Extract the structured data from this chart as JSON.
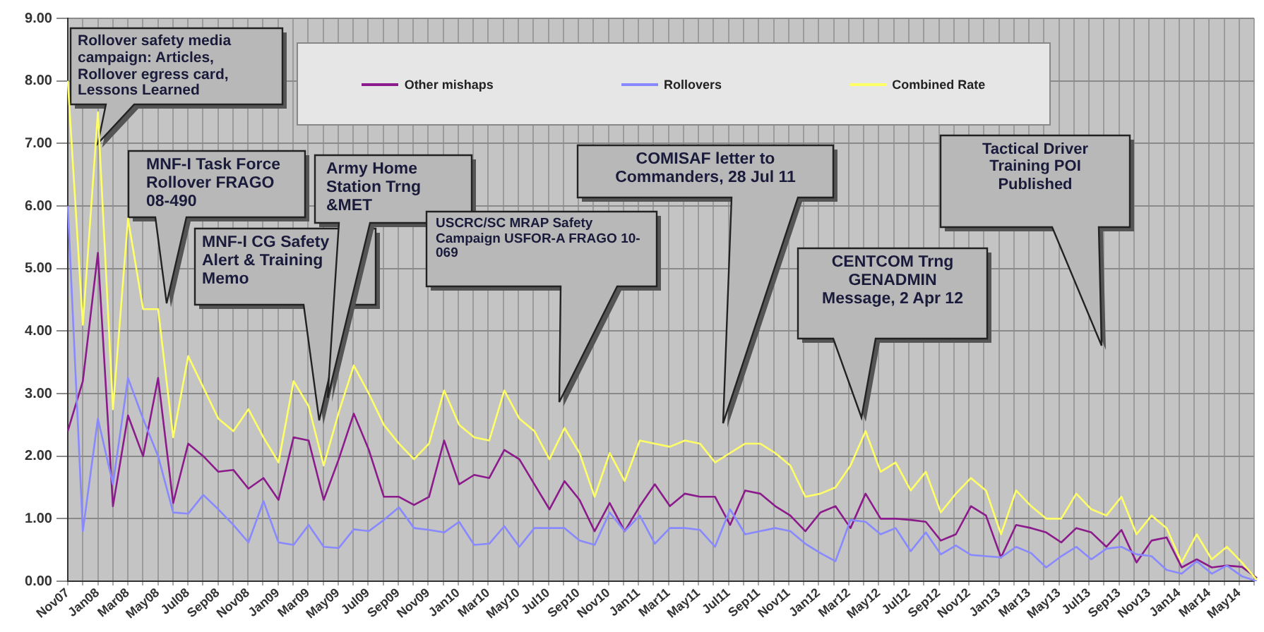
{
  "chart_data": {
    "type": "line",
    "categories": [
      "Nov07",
      null,
      "Jan08",
      null,
      "Mar08",
      null,
      "May08",
      null,
      "Jul08",
      null,
      "Sep08",
      null,
      "Nov08",
      null,
      "Jan09",
      null,
      "Mar09",
      null,
      "May09",
      null,
      "Jul09",
      null,
      "Sep09",
      null,
      "Nov09",
      null,
      "Jan10",
      null,
      "Mar10",
      null,
      "May10",
      null,
      "Jul10",
      null,
      "Sep10",
      null,
      "Nov10",
      null,
      "Jan11",
      null,
      "Mar11",
      null,
      "May11",
      null,
      "Jul11",
      null,
      "Sep11",
      null,
      "Nov11",
      null,
      "Jan12",
      null,
      "Mar12",
      null,
      "May12",
      null,
      "Jul12",
      null,
      "Sep12",
      null,
      "Nov12",
      null,
      "Jan13",
      null,
      "Mar13",
      null,
      "May13",
      null,
      "Jul13",
      null,
      "Sep13",
      null,
      "Nov13",
      null,
      "Jan14",
      null,
      "Mar14",
      null,
      "May14",
      null
    ],
    "series": [
      {
        "name": "Other mishaps",
        "color": "#8b1a8b",
        "values": [
          2.4,
          3.2,
          5.25,
          1.2,
          2.65,
          2.0,
          3.25,
          1.25,
          2.2,
          2.0,
          1.75,
          1.78,
          1.48,
          1.65,
          1.3,
          2.3,
          2.25,
          1.3,
          1.95,
          2.68,
          2.1,
          1.35,
          1.35,
          1.22,
          1.35,
          2.25,
          1.55,
          1.7,
          1.65,
          2.1,
          1.95,
          1.55,
          1.15,
          1.6,
          1.3,
          0.8,
          1.25,
          0.8,
          1.2,
          1.55,
          1.2,
          1.4,
          1.35,
          1.35,
          0.9,
          1.45,
          1.4,
          1.2,
          1.05,
          0.8,
          1.1,
          1.2,
          0.85,
          1.4,
          1.0,
          1.0,
          0.98,
          0.95,
          0.65,
          0.75,
          1.2,
          1.05,
          0.38,
          0.9,
          0.85,
          0.78,
          0.62,
          0.85,
          0.78,
          0.55,
          0.82,
          0.3,
          0.65,
          0.7,
          0.22,
          0.35,
          0.22,
          0.25,
          0.23,
          0.05
        ]
      },
      {
        "name": "Rollovers",
        "color": "#8888ff",
        "values": [
          6.0,
          0.8,
          2.6,
          1.55,
          3.25,
          2.6,
          2.0,
          1.1,
          1.08,
          1.38,
          1.15,
          0.9,
          0.62,
          1.28,
          0.62,
          0.58,
          0.9,
          0.55,
          0.53,
          0.83,
          0.8,
          0.98,
          1.18,
          0.85,
          0.82,
          0.78,
          0.95,
          0.58,
          0.6,
          0.88,
          0.55,
          0.85,
          0.85,
          0.85,
          0.65,
          0.58,
          1.1,
          0.8,
          1.05,
          0.6,
          0.85,
          0.85,
          0.82,
          0.55,
          1.15,
          0.75,
          0.8,
          0.85,
          0.8,
          0.6,
          0.45,
          0.32,
          0.98,
          0.95,
          0.75,
          0.85,
          0.48,
          0.78,
          0.43,
          0.57,
          0.42,
          0.4,
          0.38,
          0.55,
          0.45,
          0.22,
          0.4,
          0.55,
          0.35,
          0.52,
          0.55,
          0.43,
          0.4,
          0.18,
          0.12,
          0.32,
          0.12,
          0.25,
          0.08,
          0.0
        ]
      },
      {
        "name": "Combined Rate",
        "color": "#ffff66",
        "values": [
          8.0,
          4.1,
          7.5,
          2.75,
          5.8,
          4.35,
          4.35,
          2.3,
          3.6,
          3.1,
          2.6,
          2.4,
          2.75,
          2.3,
          1.9,
          3.2,
          2.8,
          1.85,
          2.7,
          3.45,
          3.0,
          2.5,
          2.2,
          1.95,
          2.2,
          3.05,
          2.5,
          2.3,
          2.25,
          3.05,
          2.6,
          2.4,
          1.95,
          2.45,
          2.05,
          1.35,
          2.05,
          1.6,
          2.25,
          2.2,
          2.15,
          2.25,
          2.2,
          1.9,
          2.05,
          2.2,
          2.2,
          2.05,
          1.85,
          1.35,
          1.4,
          1.5,
          1.85,
          2.4,
          1.75,
          1.9,
          1.45,
          1.75,
          1.1,
          1.4,
          1.65,
          1.45,
          0.75,
          1.45,
          1.2,
          1.0,
          1.0,
          1.4,
          1.15,
          1.05,
          1.35,
          0.75,
          1.05,
          0.85,
          0.3,
          0.75,
          0.35,
          0.55,
          0.3,
          0.02
        ]
      }
    ],
    "ylim": [
      0,
      9
    ],
    "yticks": [
      {
        "value": 0,
        "label": "0.00"
      },
      {
        "value": 1,
        "label": "1.00"
      },
      {
        "value": 2,
        "label": "2.00"
      },
      {
        "value": 3,
        "label": "3.00"
      },
      {
        "value": 4,
        "label": "4.00"
      },
      {
        "value": 5,
        "label": "5.00"
      },
      {
        "value": 6,
        "label": "6.00"
      },
      {
        "value": 7,
        "label": "7.00"
      },
      {
        "value": 8,
        "label": "8.00"
      },
      {
        "value": 9,
        "label": "9.00"
      }
    ],
    "grid": true,
    "legend": "top",
    "marker": "none",
    "line_style": "solid",
    "annotations": [
      {
        "text": "Rollover safety media campaign: Articles, Rollover egress card, Lessons Learned",
        "x": "Jan08",
        "y": 7.0
      },
      "MNF-I Task Force Rollover FRAGO 08-490",
      "MNF-I CG Safety Alert & Training Memo",
      "Army Home Station Trng &MET",
      "USCRC/SC MRAP Safety Campaign USFOR-A FRAGO 10-069",
      "COMISAF letter to Commanders, 28 Jul 11",
      "CENTCOM Trng GENADMIN Message, 2 Apr 12",
      "Tactical Driver Training POI Published"
    ]
  }
}
